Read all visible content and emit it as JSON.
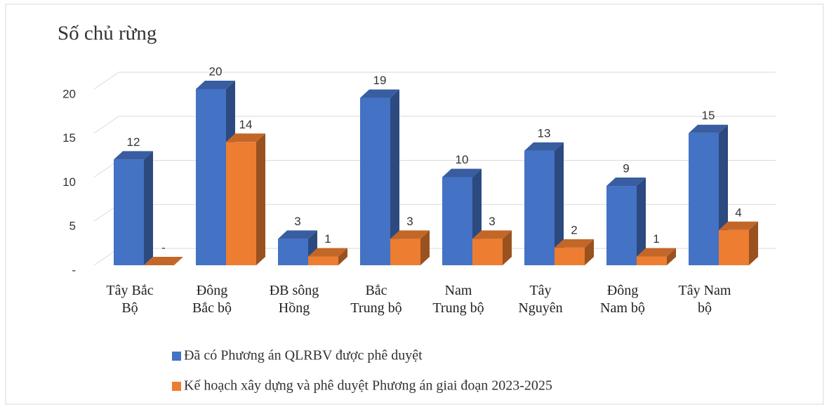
{
  "chart_data": {
    "type": "bar3d",
    "title": "Số chủ rừng",
    "categories": [
      "Tây Bắc Bộ",
      "Đông Bắc bộ",
      "ĐB sông Hồng",
      "Bắc Trung bộ",
      "Nam Trung bộ",
      "Tây Nguyên",
      "Đông Nam bộ",
      "Tây Nam bộ"
    ],
    "series": [
      {
        "name": "Đã có Phương án QLRBV được phê duyệt",
        "color": "#4472c4",
        "values": [
          12,
          20,
          3,
          19,
          10,
          13,
          9,
          15
        ]
      },
      {
        "name": "Kế hoạch xây dựng và phê duyệt Phương án giai đoạn 2023-2025",
        "color": "#ed7d31",
        "values": [
          0,
          14,
          1,
          3,
          3,
          2,
          1,
          4
        ],
        "value_labels": [
          "-",
          "14",
          "1",
          "3",
          "3",
          "2",
          "1",
          "4"
        ]
      }
    ],
    "ylim": [
      0,
      20
    ],
    "yticks": [
      {
        "value": 0,
        "label": "-"
      },
      5,
      10,
      15,
      20
    ],
    "grid": true,
    "legend": "bottom"
  }
}
